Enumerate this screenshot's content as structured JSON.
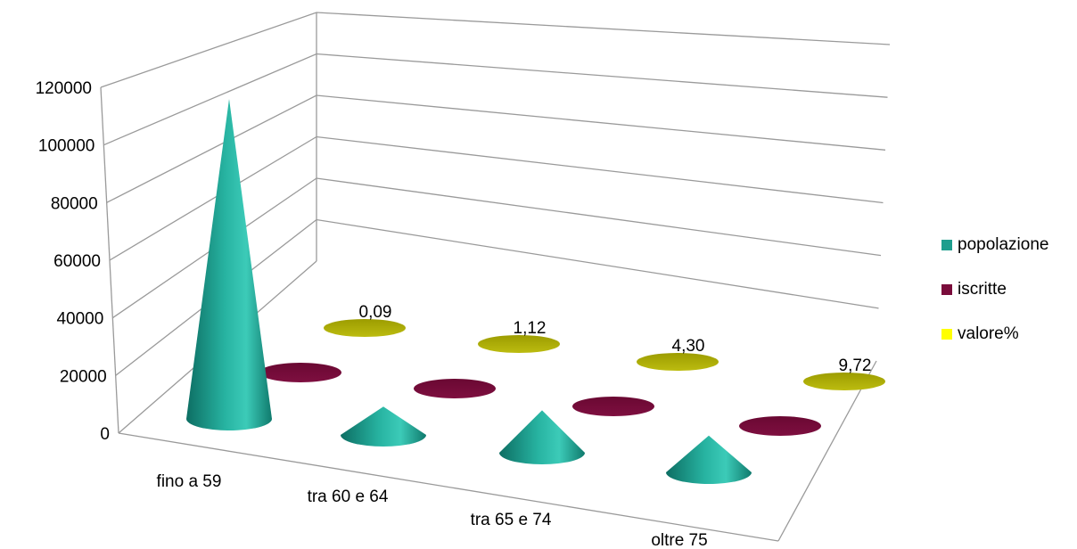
{
  "chart_data": {
    "type": "bar",
    "subtype": "3d-cone",
    "categories": [
      "fino a 59",
      "tra 60 e 64",
      "tra 65 e 74",
      "oltre 75"
    ],
    "series": [
      {
        "name": "popolazione",
        "color": "#1f9e8e",
        "values": [
          113000,
          10000,
          15000,
          13000
        ]
      },
      {
        "name": "iscritte",
        "color": "#7a0c3b",
        "values": [
          0,
          0,
          0,
          0
        ]
      },
      {
        "name": "valore%",
        "color": "#ffff00",
        "values": [
          0.09,
          1.12,
          4.3,
          9.72
        ],
        "labels": [
          "0,09",
          "1,12",
          "4,30",
          "9,72"
        ]
      }
    ],
    "ylim": [
      0,
      120000
    ],
    "yticks": [
      "0",
      "20000",
      "40000",
      "60000",
      "80000",
      "100000",
      "120000"
    ],
    "grid": true,
    "legend": "right"
  }
}
